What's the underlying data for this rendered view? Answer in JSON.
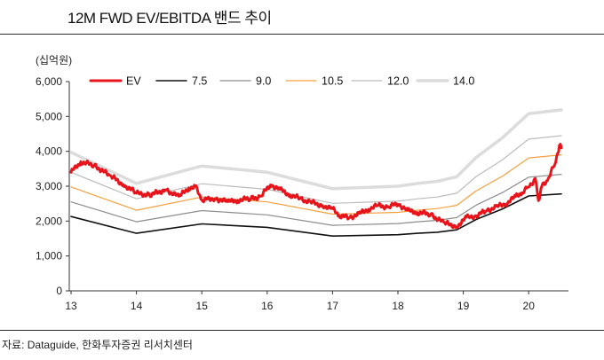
{
  "title": "12M FWD EV/EBITDA 밴드 추이",
  "source": "자료: Dataguide, 한화투자증권 리서치센터",
  "chart_data": {
    "type": "line",
    "unit_label": "(십억원)",
    "ylim": [
      0,
      6000
    ],
    "yticks": [
      0,
      1000,
      2000,
      3000,
      4000,
      5000,
      6000
    ],
    "ytick_labels": [
      "0",
      "1,000",
      "2,000",
      "3,000",
      "4,000",
      "5,000",
      "6,000"
    ],
    "xlim": [
      13,
      20.5
    ],
    "xticks": [
      13,
      14,
      15,
      16,
      17,
      18,
      19,
      20
    ],
    "xtick_labels": [
      "13",
      "14",
      "15",
      "16",
      "17",
      "18",
      "19",
      "20"
    ],
    "grid": false,
    "legend_position": "top",
    "x": [
      13.0,
      14.0,
      15.0,
      16.0,
      17.0,
      18.0,
      18.3,
      18.6,
      18.9,
      19.2,
      19.6,
      20.0,
      20.5
    ],
    "series": [
      {
        "name": "7.5",
        "color": "#111111",
        "width": 1.6,
        "values": [
          2130,
          1650,
          1920,
          1820,
          1570,
          1610,
          1650,
          1680,
          1750,
          2050,
          2350,
          2720,
          2780
        ]
      },
      {
        "name": "9.0",
        "color": "#8c8c8c",
        "width": 1.2,
        "values": [
          2550,
          1980,
          2300,
          2180,
          1880,
          1930,
          1980,
          2020,
          2100,
          2460,
          2820,
          3260,
          3340
        ]
      },
      {
        "name": "10.5",
        "color": "#f5a040",
        "width": 1.2,
        "values": [
          2980,
          2310,
          2690,
          2550,
          2200,
          2250,
          2310,
          2360,
          2450,
          2870,
          3290,
          3810,
          3900
        ]
      },
      {
        "name": "12.0",
        "color": "#bcbcbc",
        "width": 1.2,
        "values": [
          3400,
          2640,
          3070,
          2910,
          2510,
          2570,
          2640,
          2690,
          2800,
          3280,
          3760,
          4350,
          4450
        ]
      },
      {
        "name": "14.0",
        "color": "#dcdcdc",
        "width": 3.5,
        "values": [
          3970,
          3080,
          3580,
          3400,
          2930,
          3000,
          3080,
          3140,
          3270,
          3830,
          4390,
          5080,
          5190
        ]
      }
    ],
    "ev_series": {
      "name": "EV",
      "color": "#e8141b",
      "width": 3,
      "x": [
        13.0,
        13.15,
        13.35,
        13.6,
        13.8,
        14.0,
        14.2,
        14.45,
        14.65,
        14.8,
        14.9,
        15.0,
        15.2,
        15.4,
        15.55,
        15.75,
        15.9,
        16.05,
        16.2,
        16.35,
        16.5,
        16.65,
        16.85,
        17.0,
        17.1,
        17.25,
        17.4,
        17.55,
        17.7,
        17.85,
        18.0,
        18.15,
        18.3,
        18.5,
        18.7,
        18.9,
        19.05,
        19.2,
        19.35,
        19.5,
        19.65,
        19.8,
        19.9,
        20.0,
        20.1,
        20.15,
        20.2,
        20.3,
        20.4,
        20.47,
        20.5
      ],
      "values": [
        3400,
        3700,
        3600,
        3300,
        3050,
        2800,
        2750,
        2900,
        2700,
        2950,
        3000,
        2600,
        2650,
        2550,
        2600,
        2650,
        2700,
        3050,
        2900,
        2750,
        2650,
        2550,
        2450,
        2350,
        2150,
        2100,
        2200,
        2350,
        2450,
        2400,
        2500,
        2300,
        2250,
        2200,
        1950,
        1850,
        2100,
        2150,
        2300,
        2400,
        2500,
        2700,
        2800,
        3000,
        3200,
        2600,
        3000,
        3200,
        3650,
        4150,
        4100
      ]
    },
    "legend_order": [
      "EV",
      "7.5",
      "9.0",
      "10.5",
      "12.0",
      "14.0"
    ]
  }
}
